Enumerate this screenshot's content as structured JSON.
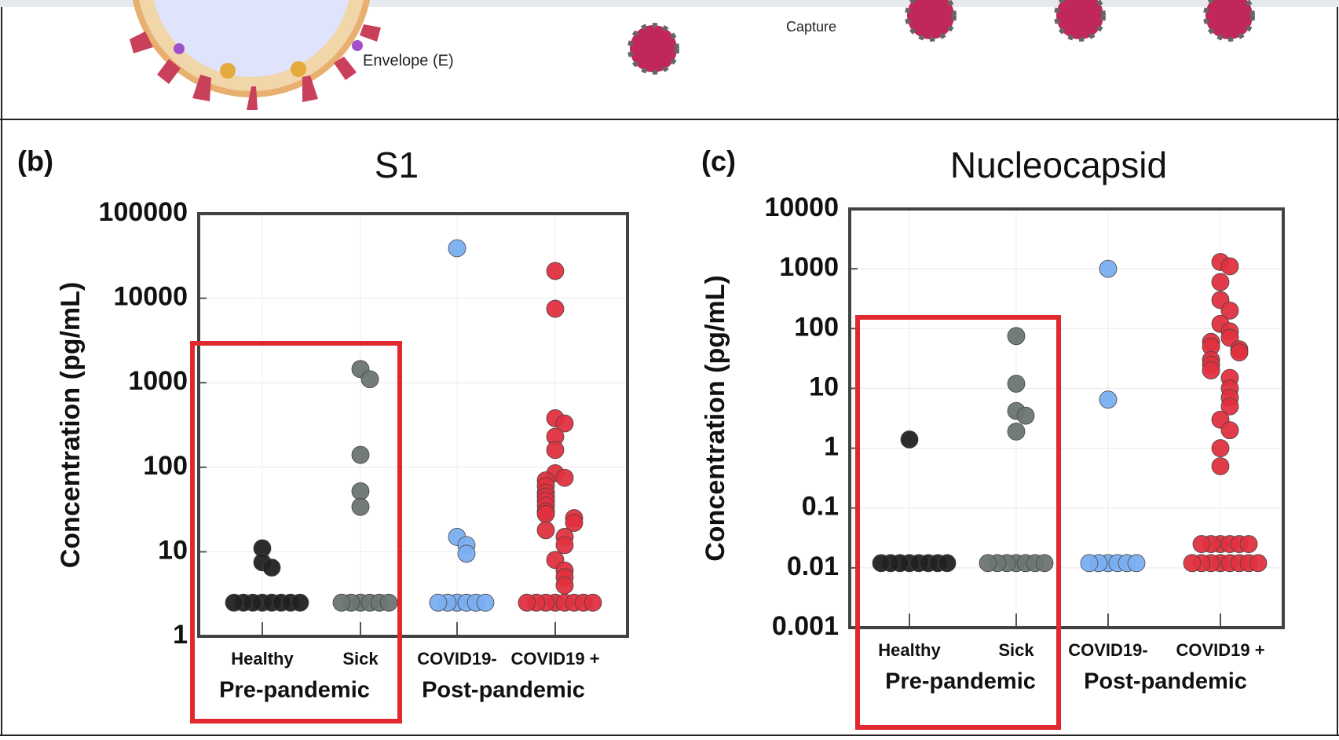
{
  "top_labels": [
    "Envelope (E)",
    "Capture"
  ],
  "chart_data": [
    {
      "type": "scatter",
      "panel": "(b)",
      "title": "S1",
      "y_label": "Concentration (pg/mL)",
      "log_scale": true,
      "grid": true,
      "categories": [
        "Healthy",
        "Sick",
        "COVID19-",
        "COVID19 +"
      ],
      "groups": [
        "Pre-pandemic",
        "Post-pandemic"
      ],
      "ylim": [
        1,
        100000
      ],
      "yticks": [
        1,
        10,
        100,
        1000,
        10000,
        100000
      ],
      "series": [
        {
          "color": "#1f2221",
          "values": [
            11,
            7.5,
            6.5,
            2.5,
            2.5,
            2.5,
            2.5,
            2.5,
            2.5,
            2.5,
            2.5
          ]
        },
        {
          "color": "#6b7571",
          "values": [
            1450,
            1100,
            140,
            52,
            34,
            2.5,
            2.5,
            2.5,
            2.5,
            2.5,
            2.5
          ]
        },
        {
          "color": "#7aaef0",
          "values": [
            39000,
            15,
            12,
            9.5,
            2.5,
            2.5,
            2.5,
            2.5,
            2.5,
            2.5
          ]
        },
        {
          "color": "#e0303f",
          "values": [
            21000,
            7500,
            380,
            330,
            230,
            160,
            85,
            75,
            70,
            60,
            50,
            45,
            40,
            35,
            30,
            28,
            25,
            22,
            18,
            15,
            12,
            8,
            6,
            5,
            4,
            2.5,
            2.5,
            2.5,
            2.5,
            2.5,
            2.5,
            2.5,
            2.5
          ]
        }
      ]
    },
    {
      "type": "scatter",
      "panel": "(c)",
      "title": "Nucleocapsid",
      "y_label": "Concentration (pg/mL)",
      "log_scale": true,
      "grid": true,
      "categories": [
        "Healthy",
        "Sick",
        "COVID19-",
        "COVID19 +"
      ],
      "groups": [
        "Pre-pandemic",
        "Post-pandemic"
      ],
      "ylim": [
        0.001,
        10000
      ],
      "yticks": [
        0.001,
        0.01,
        0.1,
        1,
        10,
        100,
        1000,
        10000
      ],
      "series": [
        {
          "color": "#1f2221",
          "values": [
            1.4,
            0.012,
            0.012,
            0.012,
            0.012,
            0.012,
            0.012,
            0.012,
            0.012
          ]
        },
        {
          "color": "#6b7571",
          "values": [
            75,
            12,
            4.2,
            3.5,
            1.9,
            0.012,
            0.012,
            0.012,
            0.012,
            0.012,
            0.012,
            0.012
          ]
        },
        {
          "color": "#7aaef0",
          "values": [
            1000,
            6.5,
            0.012,
            0.012,
            0.012,
            0.012,
            0.012,
            0.012
          ]
        },
        {
          "color": "#e0303f",
          "values": [
            1300,
            1100,
            600,
            300,
            200,
            120,
            90,
            70,
            60,
            50,
            45,
            40,
            30,
            25,
            20,
            15,
            10,
            7,
            5,
            3,
            2,
            1,
            0.5,
            0.025,
            0.025,
            0.025,
            0.025,
            0.025,
            0.025,
            0.012,
            0.012,
            0.012,
            0.012,
            0.012,
            0.012,
            0.012,
            0.012
          ]
        }
      ]
    }
  ]
}
